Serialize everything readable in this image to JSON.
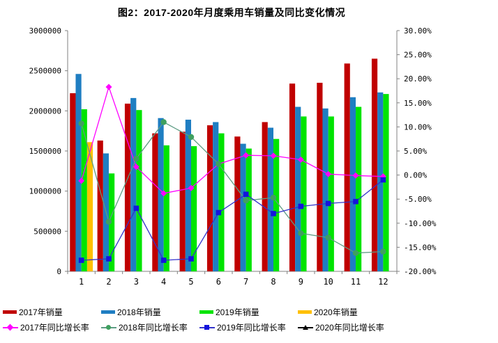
{
  "title": "图2：2017-2020年月度乘用车销量及同比变化情况",
  "colors": {
    "sales_2017": "#C00000",
    "sales_2018": "#1F7EC2",
    "sales_2019": "#00E400",
    "sales_2020": "#FFC000",
    "yoy_2017_line": "#FF00FF",
    "yoy_2017_marker": "#FF00FF",
    "yoy_2018_line": "#5E9C84",
    "yoy_2018_marker": "#3FA05F",
    "yoy_2019_line": "#3333CC",
    "yoy_2019_marker": "#1414DC",
    "yoy_2020_line": "#000000",
    "yoy_2020_marker": "#000000",
    "axis": "#808080",
    "text": "#000000"
  },
  "chart_data": {
    "type": "combo-bar-line",
    "title": "图2：2017-2020年月度乘用车销量及同比变化情况",
    "categories": [
      "1",
      "2",
      "3",
      "4",
      "5",
      "6",
      "7",
      "8",
      "9",
      "10",
      "11",
      "12"
    ],
    "bar_series": [
      {
        "name": "2017年销量",
        "color_key": "sales_2017",
        "values": [
          2220000,
          1630000,
          2090000,
          1720000,
          1740000,
          1820000,
          1680000,
          1860000,
          2340000,
          2350000,
          2590000,
          2650000
        ]
      },
      {
        "name": "2018年销量",
        "color_key": "sales_2018",
        "values": [
          2460000,
          1470000,
          2160000,
          1910000,
          1890000,
          1860000,
          1590000,
          1790000,
          2050000,
          2030000,
          2170000,
          2230000
        ]
      },
      {
        "name": "2019年销量",
        "color_key": "sales_2019",
        "values": [
          2020000,
          1220000,
          2010000,
          1570000,
          1560000,
          1720000,
          1530000,
          1650000,
          1930000,
          1930000,
          2050000,
          2210000
        ]
      },
      {
        "name": "2020年销量",
        "color_key": "sales_2020",
        "values": [
          1610000,
          null,
          null,
          null,
          null,
          null,
          null,
          null,
          null,
          null,
          null,
          null
        ]
      }
    ],
    "line_series": [
      {
        "name": "2017年同比增长率",
        "marker": "diamond",
        "color_key": "yoy_2017",
        "values": [
          -1.2,
          18.3,
          1.7,
          -3.8,
          -2.7,
          2.3,
          4.1,
          4.0,
          3.2,
          0.2,
          -0.1,
          -0.3
        ]
      },
      {
        "name": "2018年同比增长率",
        "marker": "circle",
        "color_key": "yoy_2018",
        "values": [
          10.7,
          -9.7,
          3.4,
          11.0,
          7.9,
          2.3,
          -5.3,
          -4.7,
          -12.1,
          -13.0,
          -16.2,
          -15.9
        ]
      },
      {
        "name": "2019年同比增长率",
        "marker": "square",
        "color_key": "yoy_2019",
        "values": [
          -17.7,
          -17.4,
          -6.9,
          -17.7,
          -17.4,
          -7.8,
          -4.0,
          -8.0,
          -6.5,
          -5.9,
          -5.5,
          -1.0
        ]
      },
      {
        "name": "2020年同比增长率",
        "marker": "triangle",
        "color_key": "yoy_2020",
        "values": [
          null,
          null,
          null,
          null,
          null,
          null,
          null,
          null,
          null,
          null,
          null,
          null
        ]
      }
    ],
    "left_axis": {
      "label": "",
      "min": 0,
      "max": 3000000,
      "step": 500000,
      "tick_labels": [
        "0",
        "500000",
        "1000000",
        "1500000",
        "2000000",
        "2500000",
        "3000000"
      ]
    },
    "right_axis": {
      "label": "",
      "min": -20,
      "max": 30,
      "step": 5,
      "tick_labels": [
        "-20.00%",
        "-15.00%",
        "-10.00%",
        "-5.00%",
        "0.00%",
        "5.00%",
        "10.00%",
        "15.00%",
        "20.00%",
        "25.00%",
        "30.00%"
      ]
    },
    "grid": false,
    "legend_position": "bottom"
  },
  "legend": {
    "row1": [
      "2017年销量",
      "2018年销量",
      "2019年销量",
      "2020年销量"
    ],
    "row2": [
      "2017年同比增长率",
      "2018年同比增长率",
      "2019年同比增长率",
      "2020年同比增长率"
    ]
  }
}
